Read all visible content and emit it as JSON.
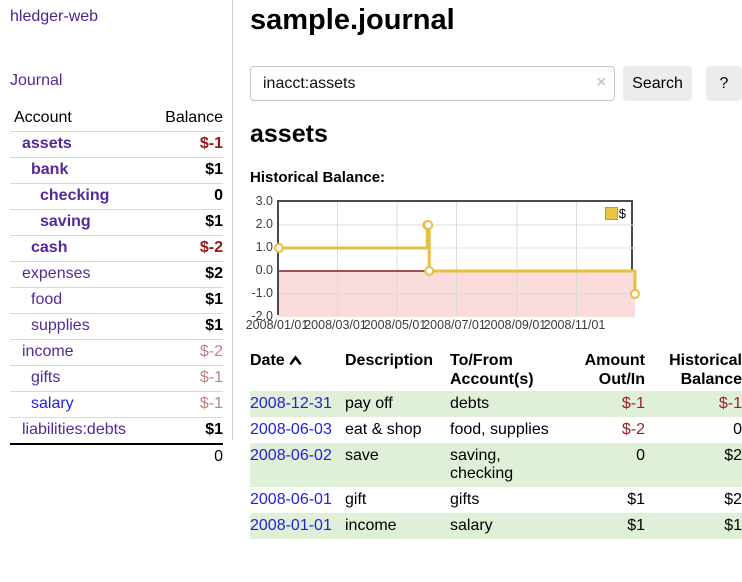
{
  "app_title": "hledger-web",
  "sidebar": {
    "journal_label": "Journal",
    "table": {
      "headers": {
        "account": "Account",
        "balance": "Balance"
      },
      "rows": [
        {
          "name": "assets",
          "balance": "$-1",
          "depth": 1,
          "bold": true,
          "neg": "strong"
        },
        {
          "name": "bank",
          "balance": "$1",
          "depth": 2,
          "bold": true
        },
        {
          "name": "checking",
          "balance": "0",
          "depth": 3,
          "bold": true
        },
        {
          "name": "saving",
          "balance": "$1",
          "depth": 3,
          "bold": true
        },
        {
          "name": "cash",
          "balance": "$-2",
          "depth": 2,
          "bold": true,
          "neg": "strong"
        },
        {
          "name": "expenses",
          "balance": "$2",
          "depth": 1
        },
        {
          "name": "food",
          "balance": "$1",
          "depth": 2
        },
        {
          "name": "supplies",
          "balance": "$1",
          "depth": 2
        },
        {
          "name": "income",
          "balance": "$-2",
          "depth": 1,
          "neg": "muted"
        },
        {
          "name": "gifts",
          "balance": "$-1",
          "depth": 2,
          "neg": "muted"
        },
        {
          "name": "salary",
          "balance": "$-1",
          "depth": 2,
          "neg": "muted",
          "blue": true
        },
        {
          "name": "liabilities:debts",
          "balance": "$1",
          "depth": 1
        }
      ],
      "total": "0"
    }
  },
  "main": {
    "title": "sample.journal",
    "search": {
      "value": "inacct:assets",
      "clear_icon": "×",
      "button_label": "Search",
      "help_label": "?"
    },
    "account_heading": "assets",
    "chart_label": "Historical Balance:"
  },
  "chart_data": {
    "type": "line",
    "step": true,
    "title": "Historical Balance",
    "series": [
      {
        "name": "$",
        "color": "#e6bf45",
        "points": [
          [
            "2008-01-01",
            1
          ],
          [
            "2008-06-01",
            2
          ],
          [
            "2008-06-02",
            2
          ],
          [
            "2008-06-03",
            0
          ],
          [
            "2008-12-31",
            -1
          ]
        ]
      }
    ],
    "x_range": [
      "2008-01-01",
      "2008-12-31"
    ],
    "x_tick_labels": [
      "2008/01/01",
      "2008/03/01",
      "2008/05/01",
      "2008/07/01",
      "2008/09/01",
      "2008/11/01"
    ],
    "y_ticks": [
      "3.0",
      "2.0",
      "1.0",
      "0.0",
      "-1.0",
      "-2.0"
    ],
    "ylim": [
      -2,
      3
    ],
    "grid": true,
    "legend": {
      "label": "$",
      "position": "top-right"
    },
    "negative_fill_color": "#fadcdc",
    "zero_line_color": "#8b1a1a",
    "grid_color": "#dcdcdc"
  },
  "register": {
    "headers": {
      "date": "Date",
      "description": "Description",
      "accounts": "To/From Account(s)",
      "amount": "Amount Out/In",
      "balance": "Historical Balance"
    },
    "sort": {
      "column": "date",
      "icon": "chevron-up"
    },
    "rows": [
      {
        "date": "2008-12-31",
        "description": "pay off",
        "accounts": "debts",
        "amount": "$-1",
        "balance": "$-1"
      },
      {
        "date": "2008-06-03",
        "description": "eat & shop",
        "accounts": "food, supplies",
        "amount": "$-2",
        "balance": "0"
      },
      {
        "date": "2008-06-02",
        "description": "save",
        "accounts": "saving, checking",
        "amount": "0",
        "balance": "$2"
      },
      {
        "date": "2008-06-01",
        "description": "gift",
        "accounts": "gifts",
        "amount": "$1",
        "balance": "$2"
      },
      {
        "date": "2008-01-01",
        "description": "income",
        "accounts": "salary",
        "amount": "$1",
        "balance": "$1"
      }
    ]
  },
  "colors": {
    "link_purple": "#55289b",
    "link_blue": "#2222dd",
    "negative_strong": "#991717",
    "negative_muted": "#c08282",
    "row_stripe_green": "#e0efd8",
    "chart_line": "#e6bf45",
    "chart_negative_fill": "#fadcdc",
    "chart_zero_line": "#8b1a1a"
  }
}
